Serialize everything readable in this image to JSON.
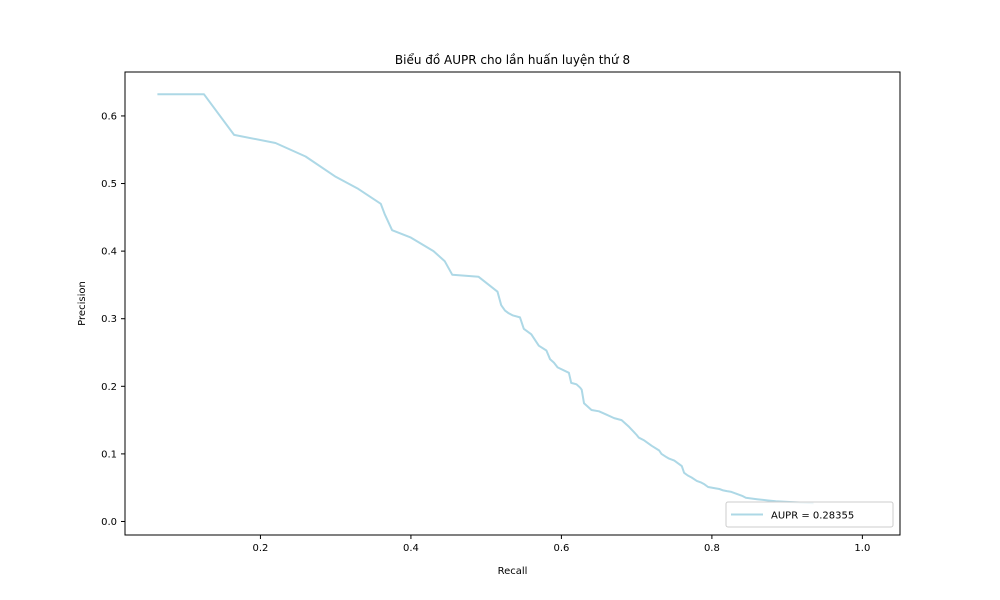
{
  "chart_data": {
    "type": "line",
    "title": "Biểu đồ AUPR cho lần huấn luyện thứ 8",
    "xlabel": "Recall",
    "ylabel": "Precision",
    "xlim": [
      0.02,
      1.05
    ],
    "ylim": [
      -0.02,
      0.665
    ],
    "grid": false,
    "legend_position": "bottom-right",
    "x_ticks": [
      0.2,
      0.4,
      0.6,
      0.8,
      1.0
    ],
    "x_tick_labels": [
      "0.2",
      "0.4",
      "0.6",
      "0.8",
      "1.0"
    ],
    "y_ticks": [
      0.0,
      0.1,
      0.2,
      0.3,
      0.4,
      0.5,
      0.6
    ],
    "y_tick_labels": [
      "0.0",
      "0.1",
      "0.2",
      "0.3",
      "0.4",
      "0.5",
      "0.6"
    ],
    "series": [
      {
        "name": "AUPR = 0.28355",
        "color": "#add8e6",
        "x": [
          0.063,
          0.125,
          0.165,
          0.22,
          0.26,
          0.3,
          0.33,
          0.36,
          0.365,
          0.375,
          0.4,
          0.43,
          0.445,
          0.455,
          0.49,
          0.515,
          0.52,
          0.525,
          0.53,
          0.535,
          0.545,
          0.55,
          0.56,
          0.57,
          0.58,
          0.585,
          0.59,
          0.595,
          0.61,
          0.613,
          0.62,
          0.625,
          0.627,
          0.63,
          0.64,
          0.65,
          0.66,
          0.67,
          0.68,
          0.69,
          0.7,
          0.703,
          0.71,
          0.72,
          0.73,
          0.733,
          0.74,
          0.743,
          0.75,
          0.76,
          0.763,
          0.768,
          0.773,
          0.78,
          0.785,
          0.79,
          0.795,
          0.805,
          0.81,
          0.815,
          0.82,
          0.825,
          0.84,
          0.845,
          0.86,
          0.875,
          0.885,
          0.9,
          0.92,
          0.935
        ],
        "y": [
          0.632,
          0.632,
          0.572,
          0.56,
          0.54,
          0.51,
          0.492,
          0.47,
          0.455,
          0.431,
          0.42,
          0.4,
          0.385,
          0.365,
          0.362,
          0.34,
          0.32,
          0.312,
          0.308,
          0.305,
          0.302,
          0.285,
          0.277,
          0.26,
          0.253,
          0.24,
          0.235,
          0.228,
          0.22,
          0.205,
          0.203,
          0.198,
          0.195,
          0.175,
          0.165,
          0.163,
          0.158,
          0.153,
          0.15,
          0.14,
          0.128,
          0.124,
          0.12,
          0.112,
          0.105,
          0.1,
          0.095,
          0.093,
          0.09,
          0.082,
          0.072,
          0.068,
          0.065,
          0.06,
          0.058,
          0.055,
          0.051,
          0.049,
          0.048,
          0.046,
          0.045,
          0.044,
          0.038,
          0.035,
          0.033,
          0.031,
          0.03,
          0.029,
          0.028,
          0.027
        ]
      }
    ]
  }
}
